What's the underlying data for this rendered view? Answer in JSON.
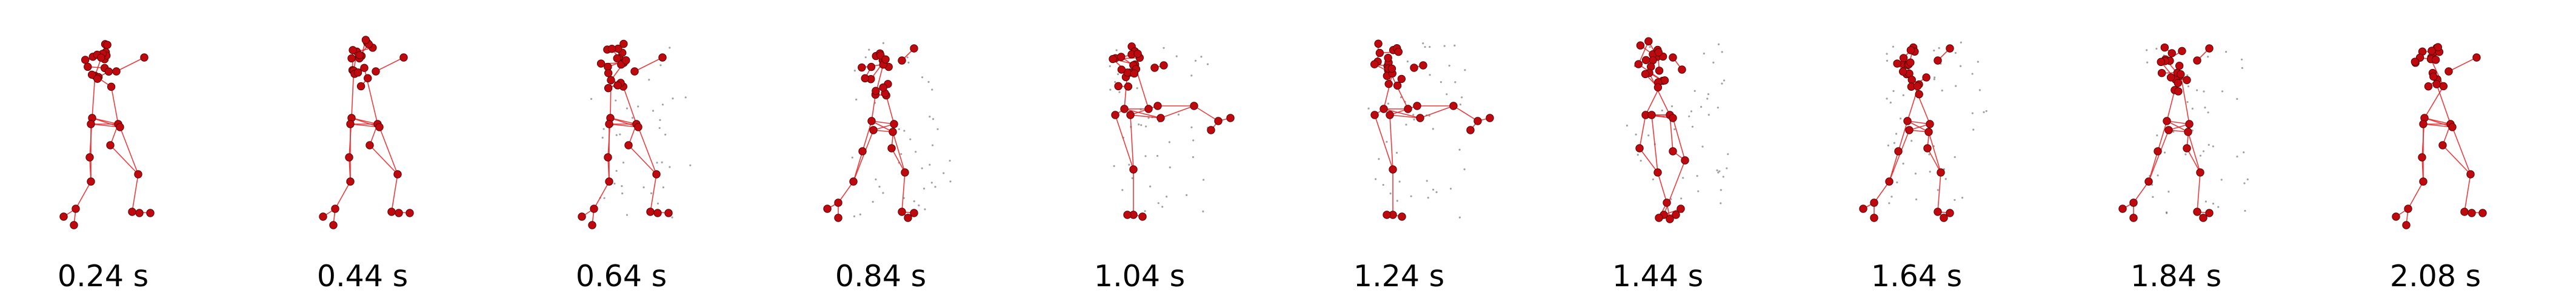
{
  "figure": {
    "description_free": true,
    "edge_color": "#e8272b",
    "joint_color": "#c0090f",
    "joint_stroke": "#5a0000",
    "ghost_color": "#555555",
    "frames": [
      {
        "label": "0.24 s",
        "pose": "boxing-guard"
      },
      {
        "label": "0.44 s",
        "pose": "boxing-guard"
      },
      {
        "label": "0.64 s",
        "pose": "boxing-guard"
      },
      {
        "label": "0.84 s",
        "pose": "lunge"
      },
      {
        "label": "1.04 s",
        "pose": "kick"
      },
      {
        "label": "1.24 s",
        "pose": "kick"
      },
      {
        "label": "1.44 s",
        "pose": "crouch"
      },
      {
        "label": "1.64 s",
        "pose": "lunge"
      },
      {
        "label": "1.84 s",
        "pose": "lunge"
      },
      {
        "label": "2.08 s",
        "pose": "boxing-guard"
      }
    ]
  }
}
